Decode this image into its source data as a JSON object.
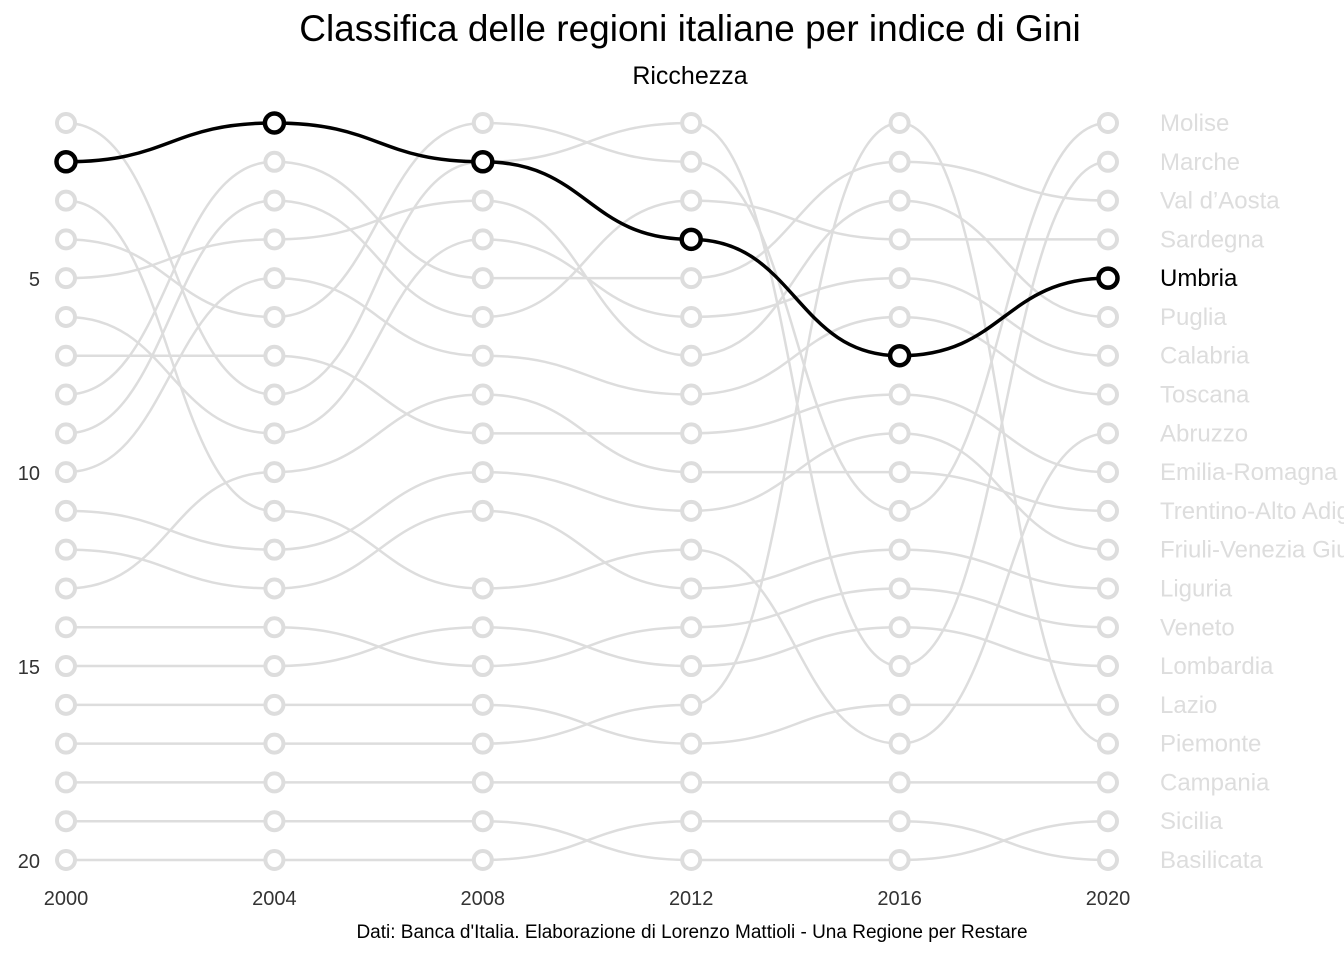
{
  "chart_data": {
    "type": "line",
    "title": "Classifica delle regioni italiane per indice di Gini",
    "subtitle": "Ricchezza",
    "caption": "Dati: Banca d'Italia. Elaborazione di Lorenzo Mattioli - Una Regione per Restare",
    "x": [
      2000,
      2004,
      2008,
      2012,
      2016,
      2020
    ],
    "y_ticks": [
      5,
      10,
      15,
      20
    ],
    "ylim": [
      1,
      20
    ],
    "y_reversed": true,
    "grid": false,
    "highlight": "Umbria",
    "series": [
      {
        "name": "Molise",
        "values": [
          4,
          6,
          1,
          2,
          11,
          1
        ]
      },
      {
        "name": "Marche",
        "values": [
          1,
          8,
          2,
          1,
          15,
          2
        ]
      },
      {
        "name": "Val d’Aosta",
        "values": [
          8,
          2,
          5,
          5,
          2,
          3
        ]
      },
      {
        "name": "Sardegna",
        "values": [
          9,
          3,
          6,
          3,
          4,
          4
        ]
      },
      {
        "name": "Umbria",
        "values": [
          2,
          1,
          2,
          4,
          7,
          5
        ]
      },
      {
        "name": "Puglia",
        "values": [
          5,
          4,
          3,
          7,
          3,
          6
        ]
      },
      {
        "name": "Calabria",
        "values": [
          6,
          9,
          4,
          6,
          5,
          7
        ]
      },
      {
        "name": "Toscana",
        "values": [
          10,
          5,
          7,
          8,
          6,
          8
        ]
      },
      {
        "name": "Abruzzo",
        "values": [
          3,
          11,
          13,
          12,
          17,
          9
        ]
      },
      {
        "name": "Emilia-Romagna",
        "values": [
          7,
          7,
          9,
          9,
          8,
          10
        ]
      },
      {
        "name": "Trentino-Alto Adige",
        "values": [
          13,
          10,
          8,
          10,
          10,
          11
        ]
      },
      {
        "name": "Friuli-Venezia Giulia",
        "values": [
          11,
          12,
          10,
          11,
          9,
          12
        ]
      },
      {
        "name": "Liguria",
        "values": [
          12,
          13,
          11,
          13,
          12,
          13
        ]
      },
      {
        "name": "Veneto",
        "values": [
          14,
          14,
          15,
          14,
          13,
          14
        ]
      },
      {
        "name": "Lombardia",
        "values": [
          15,
          15,
          14,
          15,
          14,
          15
        ]
      },
      {
        "name": "Lazio",
        "values": [
          16,
          16,
          16,
          17,
          16,
          16
        ]
      },
      {
        "name": "Piemonte",
        "values": [
          17,
          17,
          17,
          16,
          1,
          17
        ]
      },
      {
        "name": "Campania",
        "values": [
          18,
          18,
          18,
          18,
          18,
          18
        ]
      },
      {
        "name": "Sicilia",
        "values": [
          19,
          19,
          19,
          20,
          20,
          19
        ]
      },
      {
        "name": "Basilicata",
        "values": [
          20,
          20,
          20,
          19,
          19,
          20
        ]
      }
    ],
    "colors": {
      "background": "#dddddd",
      "highlight": "#000000"
    }
  }
}
